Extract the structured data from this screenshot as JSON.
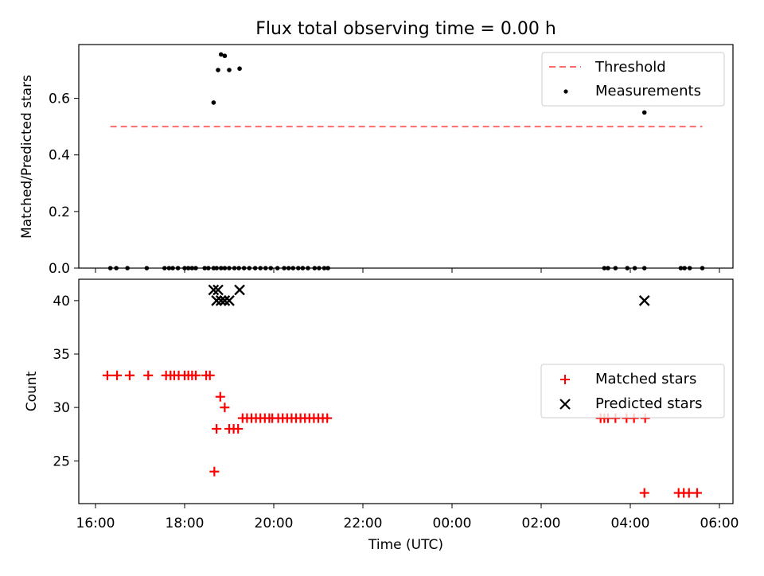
{
  "chart_data": [
    {
      "type": "scatter",
      "title": "Flux total observing time = 0.00 h",
      "xlabel": "",
      "ylabel": "Matched/Predicted stars",
      "ylim": [
        0,
        0.79
      ],
      "yticks": [
        "0.0",
        "0.2",
        "0.4",
        "0.6"
      ],
      "x_is_time_hours_utc": true,
      "grid": false,
      "legend_position": "top-right",
      "legend": [
        "Threshold",
        "Measurements"
      ],
      "threshold": {
        "name": "Threshold",
        "value": 0.5,
        "x_start": "16:20",
        "x_end": "05:37",
        "color": "#ff6b6b",
        "style": "dashed"
      },
      "series": [
        {
          "name": "Measurements",
          "color": "#000000",
          "x": [
            "16:20",
            "16:28",
            "16:43",
            "17:09",
            "17:33",
            "17:39",
            "17:44",
            "17:51",
            "18:00",
            "18:05",
            "18:10",
            "18:15",
            "18:27",
            "18:32",
            "18:39",
            "18:43",
            "18:49",
            "18:54",
            "19:00",
            "19:07",
            "19:13",
            "19:20",
            "19:27",
            "19:35",
            "19:42",
            "19:49",
            "19:56",
            "20:05",
            "20:14",
            "20:20",
            "20:26",
            "20:33",
            "20:39",
            "20:46",
            "20:55",
            "21:01",
            "21:08",
            "21:13",
            "03:25",
            "03:30",
            "03:40",
            "03:56",
            "04:06",
            "04:19",
            "05:08",
            "05:13",
            "05:20",
            "05:37",
            "18:39",
            "18:45",
            "18:49",
            "18:54",
            "19:00",
            "19:14",
            "04:19"
          ],
          "y": [
            0,
            0,
            0,
            0,
            0,
            0,
            0,
            0,
            0,
            0,
            0,
            0,
            0,
            0,
            0,
            0,
            0,
            0,
            0,
            0,
            0,
            0,
            0,
            0,
            0,
            0,
            0,
            0,
            0,
            0,
            0,
            0,
            0,
            0,
            0,
            0,
            0,
            0,
            0,
            0,
            0,
            0,
            0,
            0,
            0,
            0,
            0,
            0,
            0.585,
            0.7,
            0.755,
            0.75,
            0.7,
            0.705,
            0.55
          ]
        }
      ]
    },
    {
      "type": "scatter",
      "title": "",
      "xlabel": "Time (UTC)",
      "ylabel": "Count",
      "ylim": [
        21,
        42
      ],
      "yticks": [
        "25",
        "30",
        "35",
        "40"
      ],
      "xticks": [
        "16:00",
        "18:00",
        "20:00",
        "22:00",
        "00:00",
        "02:00",
        "04:00",
        "06:00"
      ],
      "grid": false,
      "legend_position": "center-right",
      "legend": [
        "Matched stars",
        "Predicted stars"
      ],
      "series": [
        {
          "name": "Matched stars",
          "color": "#ff0000",
          "marker": "+",
          "x": [
            "16:16",
            "16:29",
            "16:46",
            "17:11",
            "17:35",
            "17:41",
            "17:46",
            "17:52",
            "18:00",
            "18:05",
            "18:10",
            "18:15",
            "18:29",
            "18:34",
            "18:40",
            "18:43",
            "18:48",
            "18:54",
            "19:00",
            "19:06",
            "19:12",
            "19:18",
            "19:24",
            "19:30",
            "19:36",
            "19:42",
            "19:48",
            "19:54",
            "19:58",
            "20:06",
            "20:12",
            "20:18",
            "20:24",
            "20:30",
            "20:36",
            "20:42",
            "20:48",
            "20:54",
            "21:00",
            "21:06",
            "21:12",
            "03:20",
            "03:25",
            "03:30",
            "03:40",
            "03:55",
            "04:05",
            "04:20",
            "05:05",
            "05:12",
            "05:19",
            "05:30",
            "04:19"
          ],
          "y": [
            33,
            33,
            33,
            33,
            33,
            33,
            33,
            33,
            33,
            33,
            33,
            33,
            33,
            33,
            24,
            28,
            31,
            30,
            28,
            28,
            28,
            29,
            29,
            29,
            29,
            29,
            29,
            29,
            29,
            29,
            29,
            29,
            29,
            29,
            29,
            29,
            29,
            29,
            29,
            29,
            29,
            29,
            29,
            29,
            29,
            29,
            29,
            29,
            22,
            22,
            22,
            22,
            22
          ]
        },
        {
          "name": "Predicted stars",
          "color": "#000000",
          "marker": "x",
          "x": [
            "18:39",
            "18:45",
            "18:43",
            "18:49",
            "18:54",
            "19:00",
            "19:14",
            "04:19"
          ],
          "y": [
            41,
            41,
            40,
            40,
            40,
            40,
            41,
            40
          ]
        }
      ]
    }
  ]
}
